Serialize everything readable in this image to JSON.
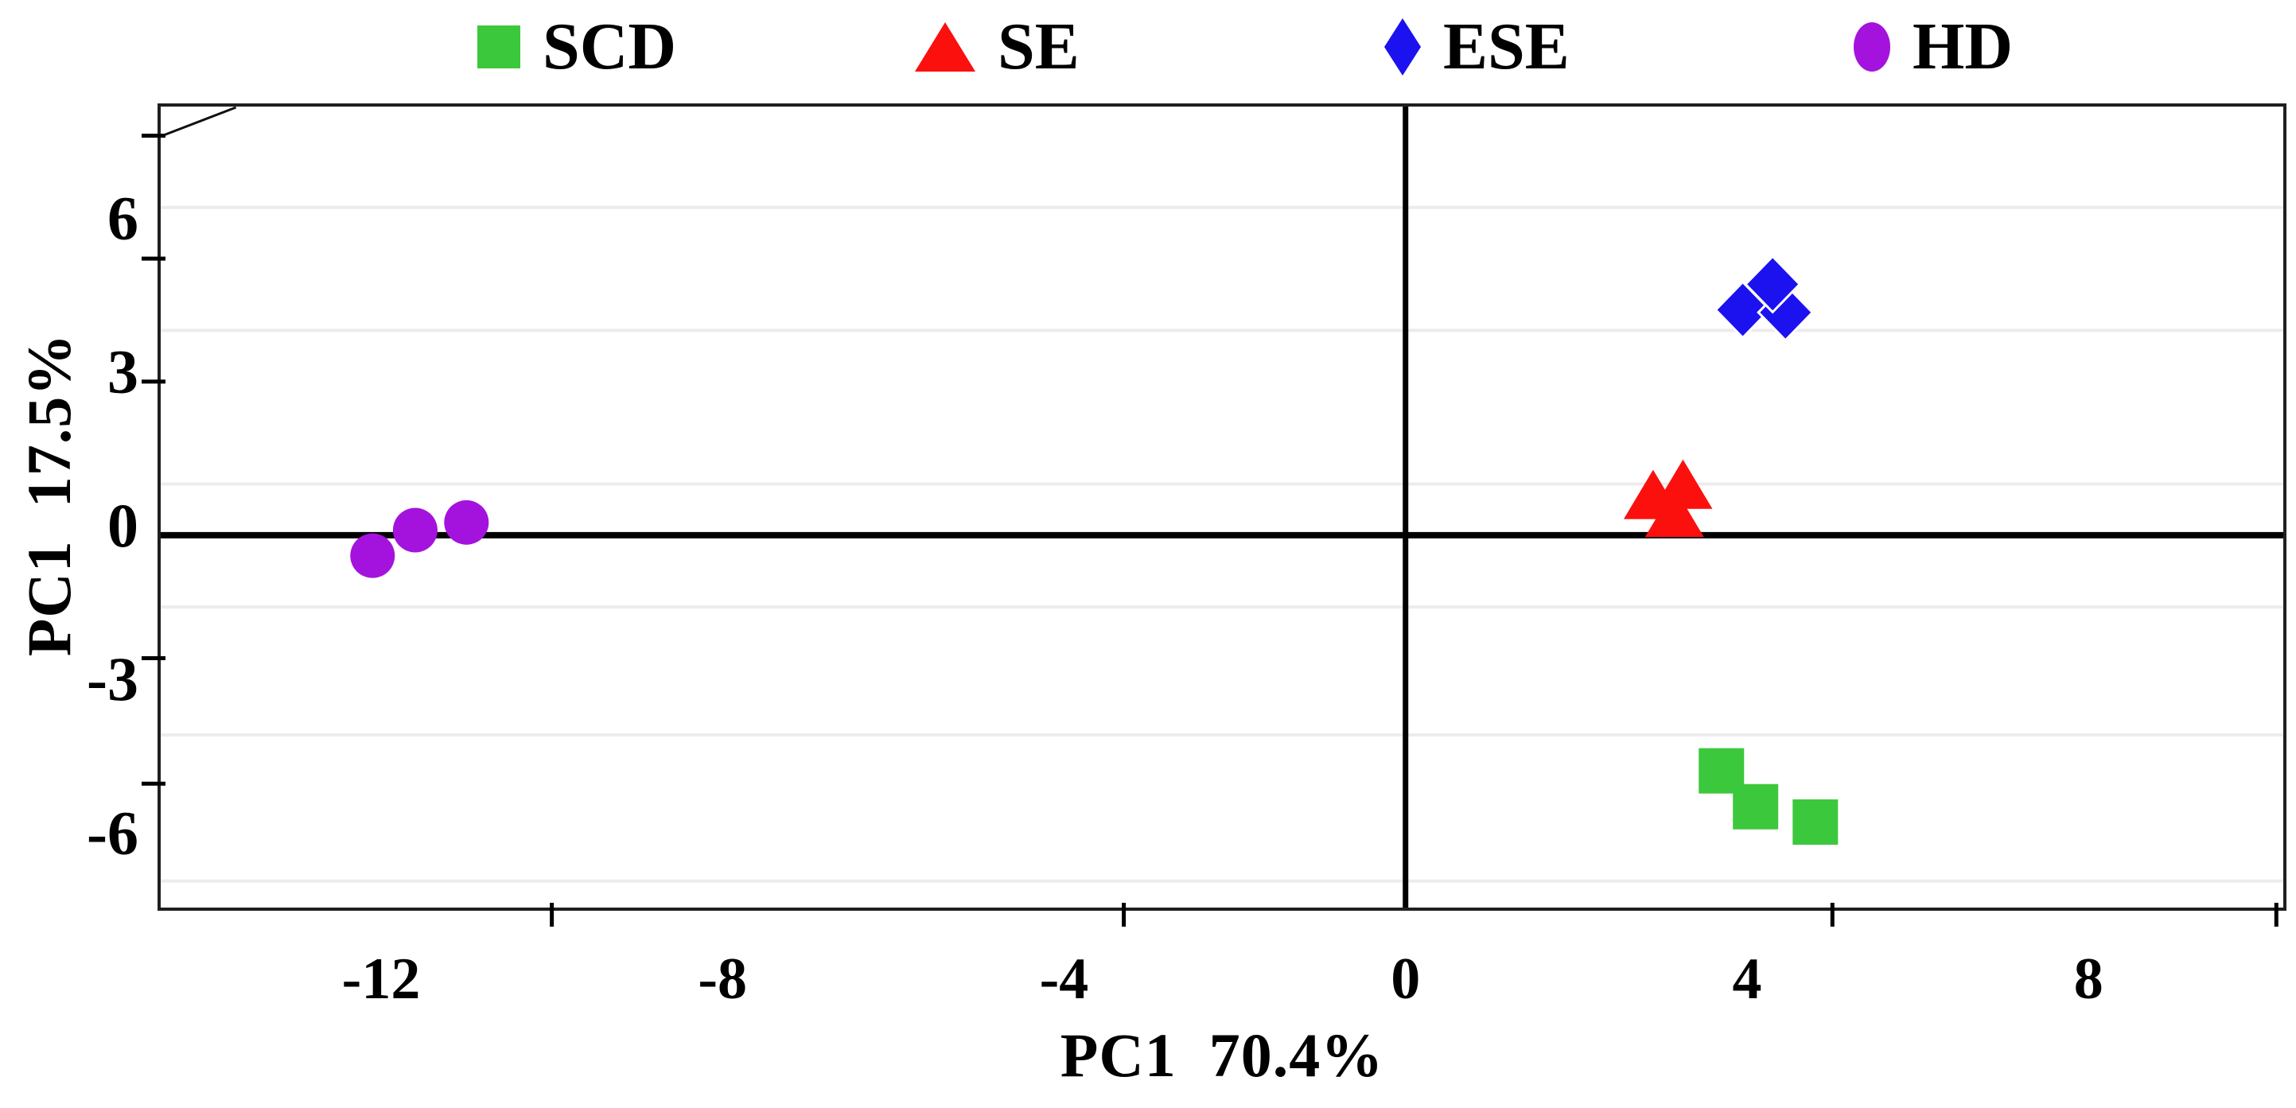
{
  "figure": {
    "background": "#ffffff",
    "axis_color": "#1f1f1f",
    "grid_color": "#ececec",
    "text_color": "#000000"
  },
  "legend": {
    "items": [
      {
        "label": "SCD",
        "marker": "square",
        "color": "#3cc83c"
      },
      {
        "label": "SE",
        "marker": "triangle",
        "color": "#fb100e"
      },
      {
        "label": "ESE",
        "marker": "diamond",
        "color": "#1b12ef"
      },
      {
        "label": "HD",
        "marker": "circle",
        "color": "#a413dd"
      }
    ]
  },
  "chart_data": {
    "type": "scatter",
    "title": "",
    "xlabel": "PC1  70.4%",
    "ylabel": "PC1  17.5%",
    "xlim": [
      -14.6,
      10.3
    ],
    "ylim": [
      -7.3,
      8.4
    ],
    "x_tick_labels": [
      {
        "value": -12,
        "text": "-12"
      },
      {
        "value": -8,
        "text": "-8"
      },
      {
        "value": -4,
        "text": "-4"
      },
      {
        "value": 0,
        "text": "0"
      },
      {
        "value": 4,
        "text": "4"
      },
      {
        "value": 8,
        "text": "8"
      }
    ],
    "y_tick_labels": [
      {
        "value": 6,
        "text": "6"
      },
      {
        "value": 3,
        "text": "3"
      },
      {
        "value": 0,
        "text": "0"
      },
      {
        "value": -3,
        "text": "-3"
      },
      {
        "value": -6,
        "text": "-6"
      }
    ],
    "x_minor_ticks": [
      -10,
      -3.3,
      5,
      10.2
    ],
    "y_minor_ticks": [
      7.8,
      5.4,
      3.0,
      -2.4,
      -4.85
    ],
    "gridlines_y": [
      6.4,
      4.0,
      1.0,
      -1.4,
      -3.9,
      -6.75
    ],
    "zero_lines": {
      "horizontal_at": 0,
      "vertical_at": 0
    },
    "corner_mark": {
      "from_y_value": 7.8,
      "to_x_value": -13.7
    },
    "grid_on": true,
    "legend_position": "top",
    "series": [
      {
        "name": "SCD",
        "marker": "square",
        "color": "#3cc83c",
        "stroke": "none",
        "size": 57,
        "points": [
          [
            3.7,
            -4.6
          ],
          [
            4.1,
            -5.3
          ],
          [
            4.8,
            -5.6
          ]
        ]
      },
      {
        "name": "SE",
        "marker": "triangle",
        "color": "#fb100e",
        "stroke": "none",
        "size": 62,
        "points": [
          [
            2.9,
            0.75
          ],
          [
            3.25,
            0.95
          ],
          [
            3.15,
            0.4
          ]
        ]
      },
      {
        "name": "ESE",
        "marker": "diamond",
        "color": "#1b12ef",
        "stroke": "#ffffff",
        "size": 70,
        "points": [
          [
            3.95,
            4.4
          ],
          [
            4.45,
            4.35
          ],
          [
            4.3,
            4.9
          ]
        ]
      },
      {
        "name": "HD",
        "marker": "circle",
        "color": "#a413dd",
        "stroke": "none",
        "size": 56,
        "points": [
          [
            -12.1,
            -0.4
          ],
          [
            -11.6,
            0.1
          ],
          [
            -11.0,
            0.25
          ]
        ]
      }
    ]
  }
}
